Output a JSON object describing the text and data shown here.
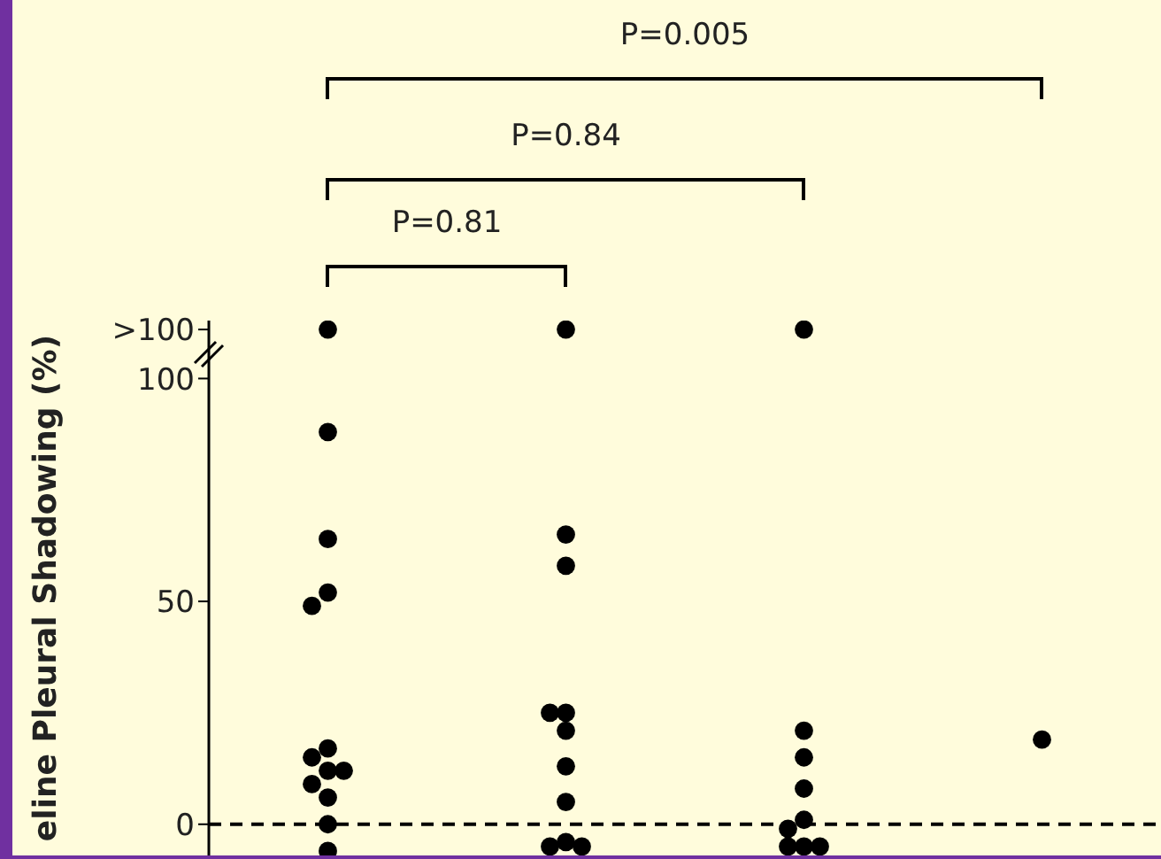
{
  "chart_data": {
    "type": "scatter",
    "ylabel": "eline Pleural Shadowing (%)",
    "categories": [
      null,
      null,
      null,
      null
    ],
    "series": [
      {
        "color": "#000000",
        "values": [
          111,
          111,
          111,
          19
        ]
      },
      {
        "color": "#000000",
        "values": [
          88,
          65,
          21,
          null
        ]
      },
      {
        "color": "#000000",
        "values": [
          64,
          58,
          15,
          null
        ]
      },
      {
        "color": "#000000",
        "values": [
          52,
          25,
          8,
          null
        ]
      },
      {
        "color": "#000000",
        "values": [
          49,
          25,
          1,
          null
        ]
      },
      {
        "color": "#000000",
        "values": [
          17,
          21,
          -1,
          null
        ]
      },
      {
        "color": "#000000",
        "values": [
          15,
          13,
          -5,
          null
        ]
      },
      {
        "color": "#000000",
        "values": [
          12,
          5,
          -5,
          null
        ]
      },
      {
        "color": "#000000",
        "values": [
          12,
          -4,
          -5,
          null
        ]
      },
      {
        "color": "#000000",
        "values": [
          9,
          -5,
          null,
          null
        ]
      },
      {
        "color": "#000000",
        "values": [
          6,
          -5,
          null,
          null
        ]
      },
      {
        "color": "#000000",
        "values": [
          0,
          null,
          null,
          null
        ]
      },
      {
        "color": "#000000",
        "values": [
          -6,
          null,
          null,
          null
        ]
      }
    ],
    "ylim": [
      -7,
      113
    ],
    "yticks": [
      0,
      50,
      100,
      {
        "value": 111,
        "label": ">100"
      }
    ],
    "ref_lines": [
      {
        "axis": "y",
        "value": 0,
        "line_style": "dashed",
        "color": "#000000"
      }
    ],
    "marker": "circle",
    "grid": false,
    "annotations": [
      "P=0.005",
      "P=0.84",
      "P=0.81"
    ]
  }
}
